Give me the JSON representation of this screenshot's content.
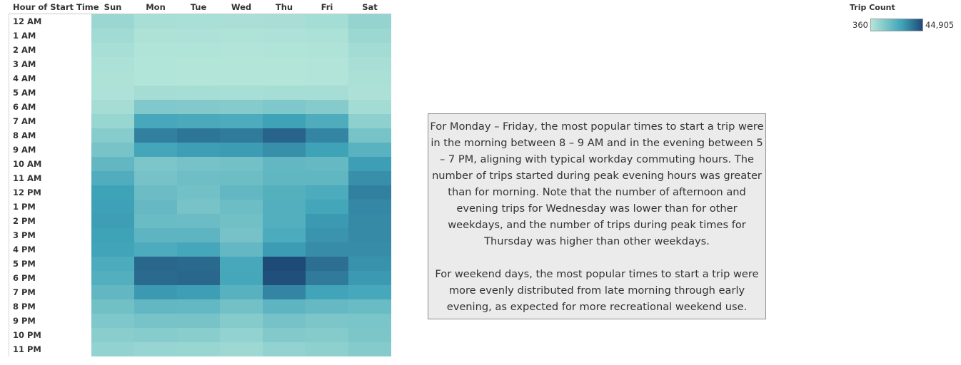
{
  "chart_data": {
    "type": "heatmap",
    "row_header": "Hour of Start Time",
    "columns": [
      "Sun",
      "Mon",
      "Tue",
      "Wed",
      "Thu",
      "Fri",
      "Sat"
    ],
    "rows": [
      "12 AM",
      "1 AM",
      "2 AM",
      "3 AM",
      "4 AM",
      "5 AM",
      "6 AM",
      "7 AM",
      "8 AM",
      "9 AM",
      "10 AM",
      "11 AM",
      "12 PM",
      "1 PM",
      "2 PM",
      "3 PM",
      "4 PM",
      "5 PM",
      "6 PM",
      "7 PM",
      "8 PM",
      "9 PM",
      "10 PM",
      "11 PM"
    ],
    "values": [
      [
        6000,
        3200,
        2800,
        2600,
        3000,
        3800,
        7500
      ],
      [
        4500,
        1600,
        1400,
        1300,
        1500,
        2000,
        5800
      ],
      [
        3200,
        900,
        800,
        700,
        800,
        1100,
        4200
      ],
      [
        2000,
        500,
        450,
        400,
        450,
        650,
        3000
      ],
      [
        1600,
        500,
        450,
        400,
        450,
        600,
        2200
      ],
      [
        1500,
        3500,
        3300,
        3200,
        3400,
        3300,
        1800
      ],
      [
        3500,
        12000,
        11500,
        11000,
        12500,
        11000,
        4200
      ],
      [
        6500,
        25000,
        24500,
        24000,
        27000,
        23500,
        9000
      ],
      [
        10500,
        34000,
        36000,
        35000,
        40000,
        33000,
        14000
      ],
      [
        14000,
        26000,
        28000,
        28500,
        31000,
        27000,
        21000
      ],
      [
        19000,
        13000,
        14500,
        15000,
        19000,
        18000,
        28000
      ],
      [
        23000,
        14500,
        16000,
        16500,
        19500,
        19500,
        31000
      ],
      [
        27000,
        17000,
        15000,
        19000,
        22000,
        24000,
        34000
      ],
      [
        27500,
        18000,
        14000,
        16500,
        22500,
        26000,
        32500
      ],
      [
        28000,
        17500,
        17000,
        15500,
        22500,
        29000,
        32000
      ],
      [
        27000,
        20000,
        20000,
        14500,
        24000,
        30000,
        32000
      ],
      [
        26500,
        24000,
        25500,
        18500,
        28500,
        31500,
        31500
      ],
      [
        24000,
        39000,
        38500,
        25000,
        44905,
        37500,
        30500
      ],
      [
        22500,
        38500,
        39000,
        25500,
        44000,
        35000,
        29000
      ],
      [
        19000,
        29000,
        28000,
        21500,
        33000,
        26500,
        25000
      ],
      [
        15500,
        19000,
        18500,
        15000,
        20000,
        18000,
        17500
      ],
      [
        12500,
        14000,
        14000,
        11000,
        14500,
        13000,
        13500
      ],
      [
        10000,
        10500,
        10000,
        8000,
        11500,
        11000,
        13000
      ],
      [
        8000,
        7000,
        6500,
        5500,
        8000,
        9000,
        11000
      ]
    ],
    "legend": {
      "title": "Trip Count",
      "min": 360,
      "max": 44905,
      "min_label": "360",
      "max_label": "44,905",
      "color_low": "#b3e5d9",
      "color_mid": "#3fa3b8",
      "color_high": "#1e4a78",
      "position": "top-right"
    }
  },
  "annotation": {
    "paragraph1": "For Monday – Friday, the most popular times to start a trip were in the morning between 8 – 9 AM and in the evening between 5 – 7 PM, aligning with typical workday commuting hours. The number of trips started during peak evening hours was greater than for morning. Note that the number of afternoon and evening trips for Wednesday was lower than for other weekdays, and the number of trips during peak times for Thursday was higher than other weekdays.",
    "paragraph2": "For weekend days, the most popular times to start a trip were more evenly distributed from late morning through early evening, as expected for more recreational weekend use."
  }
}
